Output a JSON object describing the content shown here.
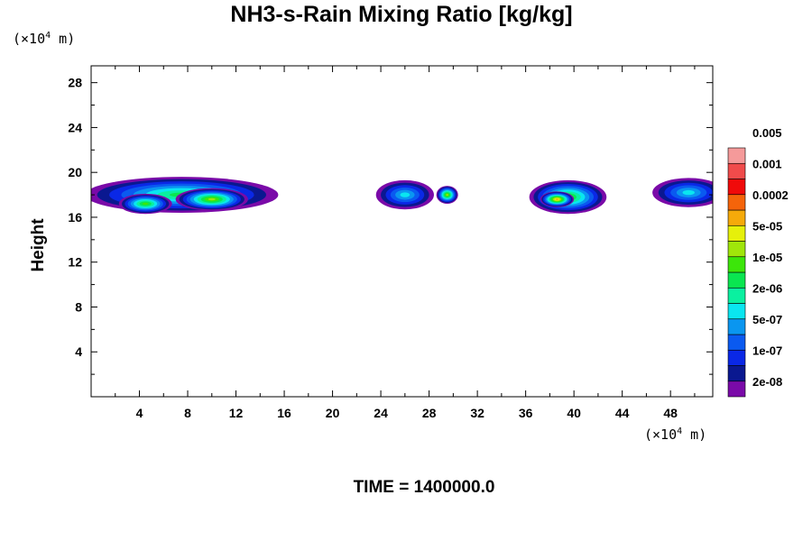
{
  "chart_data": {
    "type": "heatmap",
    "title": "NH3-s-Rain Mixing Ratio [kg/kg]",
    "xlabel": "",
    "ylabel": "Height",
    "x_unit_prefix": "(×10",
    "x_unit_exp": "4",
    "x_unit_suffix": " m)",
    "y_unit_prefix": "(×10",
    "y_unit_exp": "4",
    "y_unit_suffix": " m)",
    "xlim": [
      0,
      51.5
    ],
    "ylim": [
      0,
      29.5
    ],
    "x_ticks": [
      "4",
      "8",
      "12",
      "16",
      "20",
      "24",
      "28",
      "32",
      "36",
      "40",
      "44",
      "48"
    ],
    "y_ticks": [
      "4",
      "8",
      "12",
      "16",
      "20",
      "24",
      "28"
    ],
    "x_tick_values": [
      4,
      8,
      12,
      16,
      20,
      24,
      28,
      32,
      36,
      40,
      44,
      48
    ],
    "y_tick_values": [
      4,
      8,
      12,
      16,
      20,
      24,
      28
    ],
    "colorbar": {
      "colors": [
        "#7a0aa8",
        "#0a1890",
        "#0a28e6",
        "#0a5af0",
        "#0a96f0",
        "#0ae6f0",
        "#0af0a0",
        "#0ae650",
        "#3ce60a",
        "#a0e60a",
        "#e6f00a",
        "#f5aa0a",
        "#f5640a",
        "#f00a0a",
        "#f04b4b",
        "#f59a9a"
      ],
      "labels": [
        "2e-08",
        "1e-07",
        "5e-07",
        "2e-06",
        "1e-05",
        "5e-05",
        "0.0002",
        "0.001",
        "0.005"
      ]
    },
    "blobs": [
      {
        "x": 7.5,
        "y": 18.0,
        "rx": 8.0,
        "ry": 1.6,
        "peak": 8
      },
      {
        "x": 10.0,
        "y": 17.6,
        "rx": 3.0,
        "ry": 1.0,
        "peak": 10
      },
      {
        "x": 4.5,
        "y": 17.2,
        "rx": 2.2,
        "ry": 0.9,
        "peak": 9
      },
      {
        "x": 26.0,
        "y": 18.0,
        "rx": 2.4,
        "ry": 1.3,
        "peak": 6
      },
      {
        "x": 29.5,
        "y": 18.0,
        "rx": 0.9,
        "ry": 0.8,
        "peak": 10
      },
      {
        "x": 39.5,
        "y": 17.8,
        "rx": 3.2,
        "ry": 1.5,
        "peak": 9
      },
      {
        "x": 38.6,
        "y": 17.6,
        "rx": 1.4,
        "ry": 0.7,
        "peak": 12
      },
      {
        "x": 49.5,
        "y": 18.2,
        "rx": 3.0,
        "ry": 1.3,
        "peak": 6
      }
    ],
    "time_label": "TIME = 1400000.0"
  }
}
